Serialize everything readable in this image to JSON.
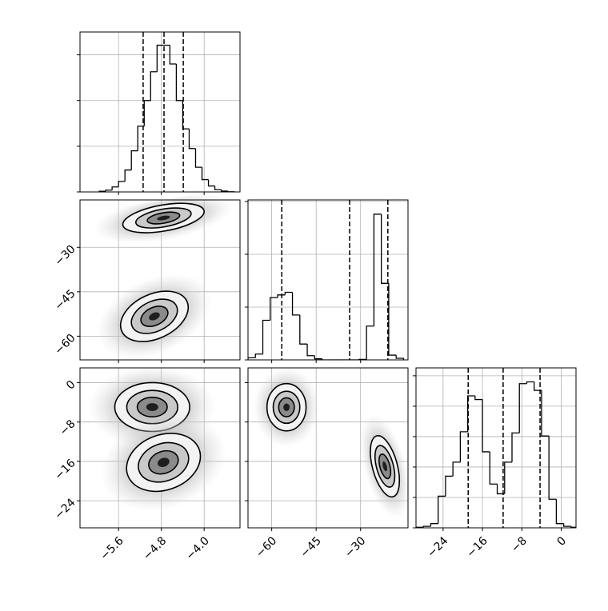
{
  "chart_data": {
    "type": "corner",
    "grid": true,
    "color": "#000000",
    "params": [
      {
        "lim": [
          -6.32,
          -3.33
        ],
        "ticks": [
          {
            "value": -5.6,
            "label": "−5.6"
          },
          {
            "value": -4.8,
            "label": "−4.8"
          },
          {
            "value": -4.0,
            "label": "−4.0"
          }
        ]
      },
      {
        "lim": [
          -68,
          -14
        ],
        "ticks": [
          {
            "value": -60,
            "label": "−60"
          },
          {
            "value": -45,
            "label": "−45"
          },
          {
            "value": -30,
            "label": "−30"
          }
        ]
      },
      {
        "lim": [
          -29.5,
          3
        ],
        "ticks": [
          {
            "value": -24,
            "label": "−24"
          },
          {
            "value": -16,
            "label": "−16"
          },
          {
            "value": -8,
            "label": "−8"
          },
          0
        ]
      }
    ],
    "histograms": [
      {
        "bins": [
          -5.96,
          -5.84,
          -5.72,
          -5.6,
          -5.48,
          -5.36,
          -5.24,
          -5.12,
          -5.0,
          -4.88,
          -4.76,
          -4.64,
          -4.52,
          -4.4,
          -4.28,
          -4.16,
          -4.04,
          -3.92,
          -3.8,
          -3.68,
          -3.56,
          -3.44
        ],
        "values": [
          15,
          40,
          110,
          230,
          480,
          900,
          1440,
          2000,
          2630,
          3210,
          3210,
          2800,
          2000,
          1380,
          950,
          540,
          270,
          130,
          50,
          20,
          5
        ],
        "quantiles": [
          -5.14,
          -4.75,
          -4.39
        ],
        "ylim": [
          0,
          3500
        ],
        "yticks": [
          0,
          1000,
          2000,
          3000
        ]
      },
      {
        "bins": [
          -68,
          -65.5,
          -63,
          -60.5,
          -58,
          -55.5,
          -53,
          -50.5,
          -48,
          -45.5,
          -43,
          -40.5,
          -38,
          -35.5,
          -33,
          -30.5,
          -28,
          -25.5,
          -23,
          -20.5,
          -18,
          -15.5
        ],
        "values": [
          40,
          110,
          750,
          1180,
          1230,
          1280,
          850,
          300,
          80,
          20,
          0,
          0,
          0,
          0,
          0,
          10,
          640,
          2760,
          1450,
          90,
          30
        ],
        "quantiles": [
          -56.6,
          -33.7,
          -20.8
        ],
        "ylim": [
          0,
          3030
        ],
        "yticks": [
          0,
          1000,
          2000,
          3000
        ]
      },
      {
        "bins": [
          -29.5,
          -28,
          -26.5,
          -25,
          -23.5,
          -22,
          -20.5,
          -19,
          -17.5,
          -16,
          -14.5,
          -13,
          -11.5,
          -10,
          -8.5,
          -7,
          -5.5,
          -4,
          -2.5,
          -1,
          0.5,
          2,
          3.5
        ],
        "values": [
          10,
          25,
          70,
          520,
          850,
          1080,
          1580,
          2170,
          2110,
          1250,
          720,
          560,
          1080,
          1560,
          2370,
          2400,
          2260,
          1510,
          470,
          70,
          25,
          10
        ],
        "quantiles": [
          -18.9,
          -11.8,
          -4.3
        ],
        "ylim": [
          0,
          2630
        ],
        "yticks": [
          0,
          500,
          1000,
          1500,
          2000,
          2500
        ]
      }
    ],
    "panels": [
      {
        "clusters": [
          {
            "x": -4.76,
            "y": -20.1,
            "rx": 0.77,
            "ry": 4.4,
            "angle": -10
          },
          {
            "x": -4.93,
            "y": -53.3,
            "rx": 0.67,
            "ry": 7.5,
            "angle": -25
          }
        ]
      },
      {
        "clusters": [
          {
            "x": -4.97,
            "y": -4.96,
            "rx": 0.7,
            "ry": 4.96,
            "angle": 0
          },
          {
            "x": -4.76,
            "y": -16.2,
            "rx": 0.71,
            "ry": 5.6,
            "angle": -20
          }
        ]
      },
      {
        "clusters": [
          {
            "x": -55,
            "y": -5,
            "rx": 6.6,
            "ry": 4.8,
            "angle": 0
          },
          {
            "x": -21.8,
            "y": -17,
            "rx": 4.2,
            "ry": 6.4,
            "angle": -15
          }
        ]
      }
    ]
  }
}
